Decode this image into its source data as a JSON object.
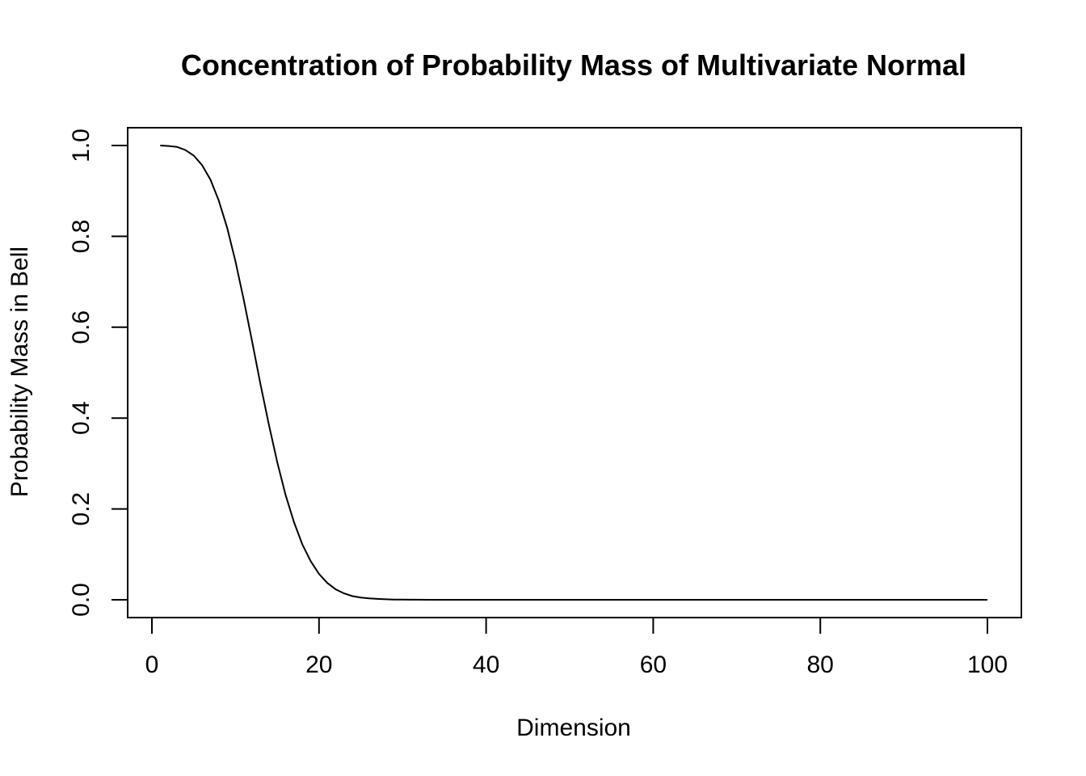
{
  "chart_data": {
    "type": "line",
    "title": "Concentration of Probability Mass of Multivariate Normal",
    "xlabel": "Dimension",
    "ylabel": "Probability Mass in Bell",
    "xlim": [
      0,
      100
    ],
    "ylim": [
      0,
      1
    ],
    "x_ticks": [
      {
        "value": 0,
        "label": "0"
      },
      {
        "value": 20,
        "label": "20"
      },
      {
        "value": 40,
        "label": "40"
      },
      {
        "value": 60,
        "label": "60"
      },
      {
        "value": 80,
        "label": "80"
      },
      {
        "value": 100,
        "label": "100"
      }
    ],
    "y_ticks": [
      {
        "value": 0.0,
        "label": "0.0"
      },
      {
        "value": 0.2,
        "label": "0.2"
      },
      {
        "value": 0.4,
        "label": "0.4"
      },
      {
        "value": 0.6,
        "label": "0.6"
      },
      {
        "value": 0.8,
        "label": "0.8"
      },
      {
        "value": 1.0,
        "label": "1.0"
      }
    ],
    "grid": false,
    "legend": "none",
    "series": [
      {
        "color": "#000000",
        "x": [
          1,
          2,
          3,
          4,
          5,
          6,
          7,
          8,
          9,
          10,
          11,
          12,
          13,
          14,
          15,
          16,
          17,
          18,
          19,
          20,
          21,
          22,
          23,
          24,
          25,
          26,
          27,
          28,
          29,
          30,
          31,
          32,
          33,
          34,
          35,
          36,
          37,
          38,
          40,
          45,
          50,
          55,
          60,
          65,
          70,
          75,
          80,
          85,
          90,
          95,
          100
        ],
        "y": [
          1.0,
          0.999,
          0.997,
          0.99,
          0.978,
          0.957,
          0.925,
          0.879,
          0.819,
          0.745,
          0.66,
          0.568,
          0.474,
          0.385,
          0.303,
          0.231,
          0.171,
          0.122,
          0.085,
          0.057,
          0.037,
          0.023,
          0.014,
          0.008,
          0.005,
          0.003,
          0.002,
          0.001,
          0.0005,
          0.0003,
          0.0001,
          0.0001,
          0.0,
          0.0,
          0.0,
          0.0,
          0.0,
          0.0,
          0.0,
          0.0,
          0.0,
          0.0,
          0.0,
          0.0,
          0.0,
          0.0,
          0.0,
          0.0,
          0.0,
          0.0,
          0.0
        ]
      }
    ]
  }
}
